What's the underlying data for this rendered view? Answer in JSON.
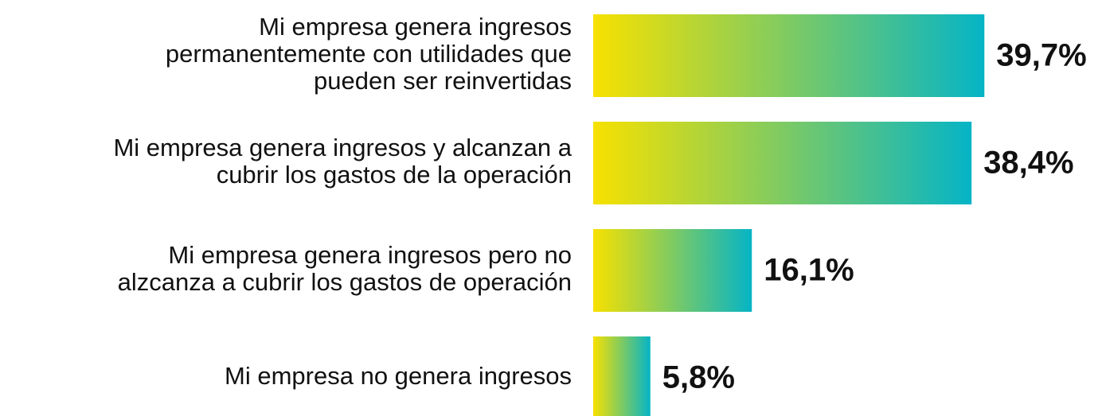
{
  "chart_data": {
    "type": "hbar",
    "categories": [
      "Mi empresa genera ingresos\npermanentemente con utilidades que\npueden ser reinvertidas",
      "Mi empresa genera ingresos y alcanzan a\ncubrir los gastos de la operación",
      "Mi empresa genera ingresos pero no\nalzcanza a cubrir los gastos de operación",
      "Mi empresa no genera ingresos"
    ],
    "values": [
      39.7,
      38.4,
      16.1,
      5.8
    ],
    "value_labels": [
      "39,7%",
      "38,4%",
      "16,1%",
      "5,8%"
    ],
    "colors": [
      "#f7e100",
      "#05b4c6"
    ],
    "xlim": [
      0,
      40
    ]
  }
}
